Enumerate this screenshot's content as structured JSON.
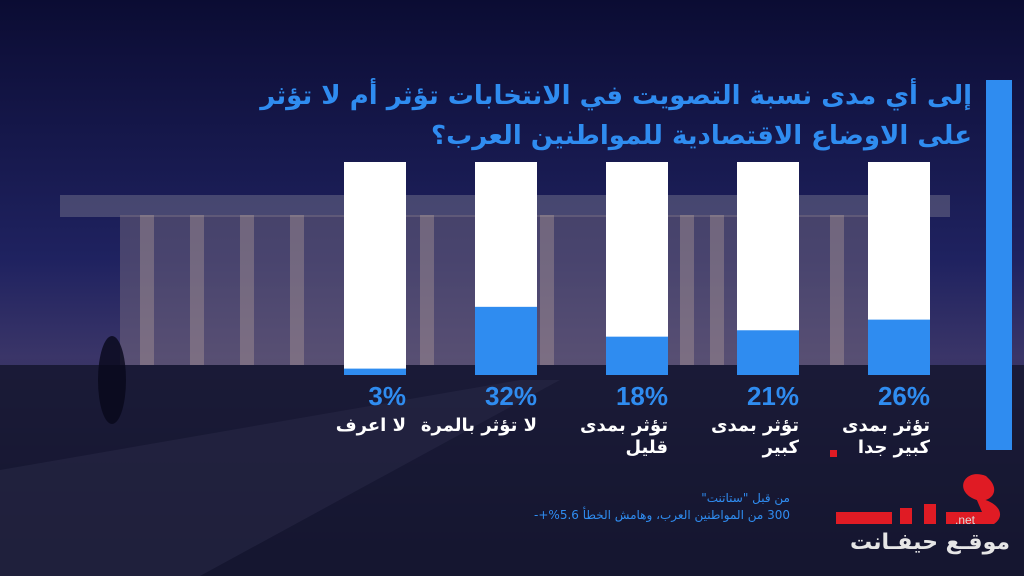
{
  "title": "إلى أي مدى نسبة التصويت في الانتخابات تؤثر أم لا تؤثر على الاوضاع الاقتصادية للمواطنين العرب؟",
  "colors": {
    "accent": "#2f8cf0",
    "bar_bg": "#ffffff",
    "background": "#0d0f3a",
    "logo_red": "#e01b24"
  },
  "chart_data": {
    "type": "bar",
    "orientation": "vertical",
    "direction": "rtl",
    "categories": [
      "تؤثر بمدى كبير جدا",
      "تؤثر بمدى كبير",
      "تؤثر بمدى قليل",
      "لا تؤثر بالمرة",
      "لا اعرف"
    ],
    "values": [
      26,
      21,
      18,
      32,
      3
    ],
    "value_labels": [
      "26%",
      "21%",
      "18%",
      "32%",
      "3%"
    ],
    "ylim": [
      0,
      100
    ],
    "grid": false,
    "legend": "none"
  },
  "source": {
    "line1": "من قبل \"ستاتنت\"",
    "line2": "300 من المواطنين العرب، وهامش الخطأ 5.6%+-"
  },
  "logo": {
    "net": ".net",
    "text": "موقـع حيفـانت",
    "icon": "haifa-net-logo"
  }
}
